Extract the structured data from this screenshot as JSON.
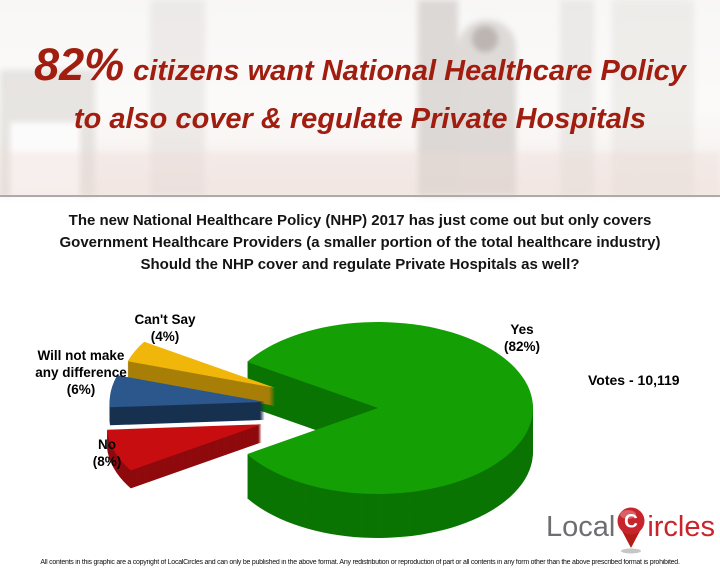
{
  "header": {
    "title_percent": "82%",
    "title_line1_rest": "citizens want National Healthcare Policy",
    "title_line2": "to also cover & regulate Private Hospitals",
    "title_color": "#A11D0F"
  },
  "question": {
    "line1": "The new National Healthcare Policy (NHP) 2017 has just come out but only covers",
    "line2": "Government Healthcare Providers (a smaller portion of the total healthcare industry)",
    "line3": "Should the NHP cover and regulate Private Hospitals as well?"
  },
  "chart_data": {
    "type": "pie",
    "style": "3d-exploded",
    "unit": "percent",
    "slices": [
      {
        "label": "Yes",
        "value": 82,
        "color": "#14A005",
        "side_color": "#0B7403",
        "label_lines": [
          "Yes",
          "(82%)"
        ]
      },
      {
        "label": "No",
        "value": 8,
        "color": "#C80D11",
        "side_color": "#8F0A0D",
        "label_lines": [
          "No",
          "(8%)"
        ]
      },
      {
        "label": "Will not make any difference",
        "value": 6,
        "color": "#2B578C",
        "side_color": "#16304F",
        "label_lines": [
          "Will not make",
          "any difference",
          "(6%)"
        ]
      },
      {
        "label": "Can't Say",
        "value": 4,
        "color": "#F1B60A",
        "side_color": "#A87F07",
        "label_lines": [
          "Can't Say",
          "(4%)"
        ]
      }
    ],
    "votes_label": "Votes - 10,119",
    "votes": "10,119",
    "legend_position": "labels-around-pie"
  },
  "footer": {
    "logo_part1": "Local",
    "logo_part2": "ircles",
    "logo_pin_letter": "C",
    "logo_gray": "#6D6E71",
    "logo_red": "#C8242B",
    "copyright": "All contents in this graphic are a copyright of LocalCircles and can only be published in the above format. Any redistribution or reproduction of part or all contents in any form other than the above prescribed format is prohibited."
  }
}
